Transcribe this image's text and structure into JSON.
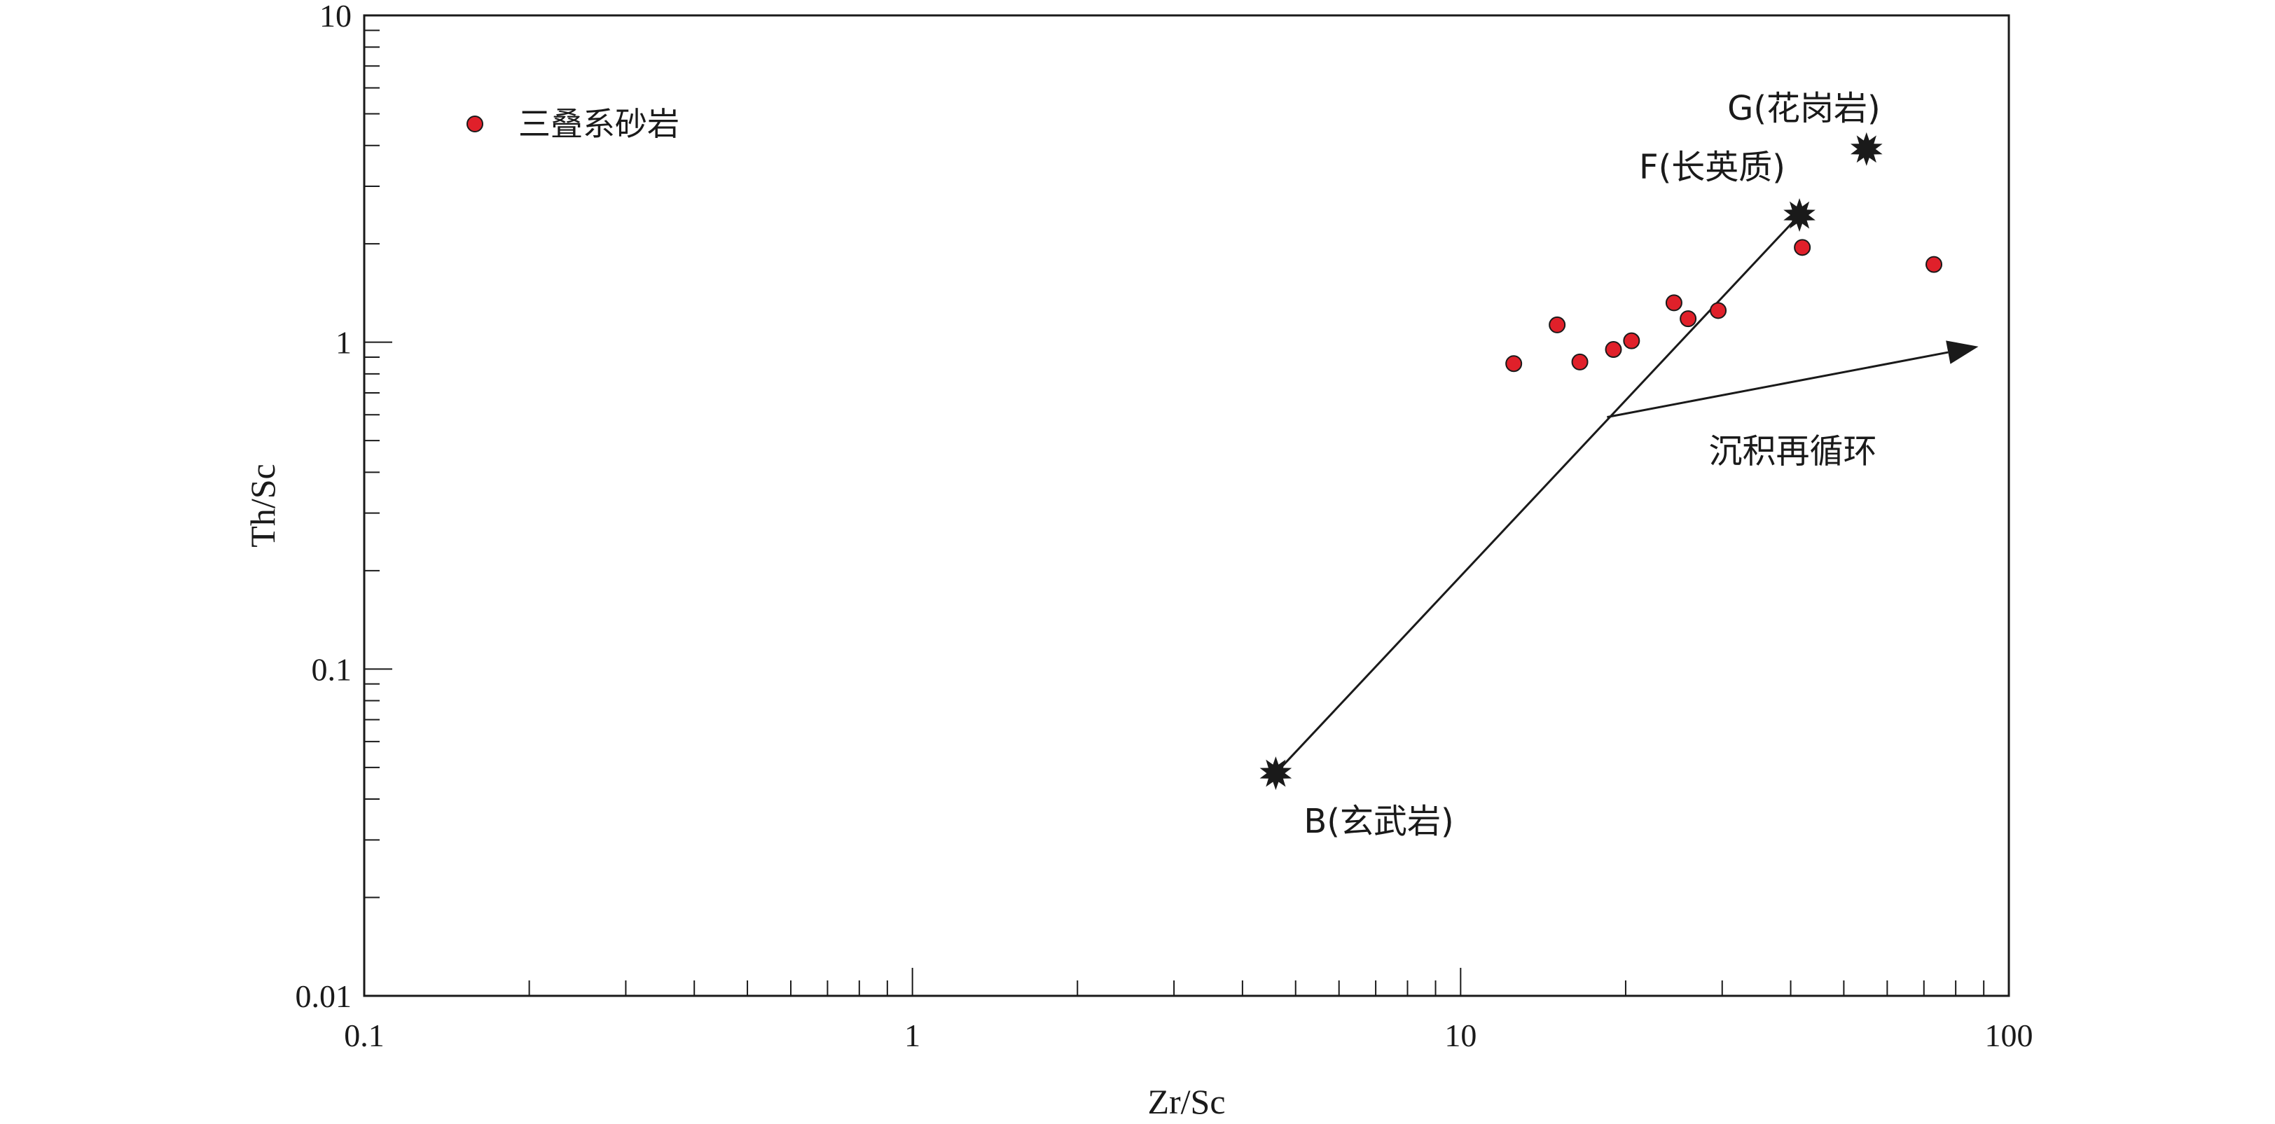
{
  "chart_data": {
    "type": "scatter",
    "xlabel": "Zr/Sc",
    "ylabel": "Th/Sc",
    "x_scale": "log",
    "y_scale": "log",
    "xlim": [
      0.1,
      100
    ],
    "ylim": [
      0.01,
      10
    ],
    "x_ticks": [
      "0.1",
      "1",
      "10",
      "100"
    ],
    "y_ticks": [
      "0.01",
      "0.1",
      "1",
      "10"
    ],
    "grid": false,
    "legend_position": "top-left",
    "series": [
      {
        "name": "三叠系砂岩",
        "color": "#e0202a",
        "points": [
          {
            "x": 12.5,
            "y": 0.86
          },
          {
            "x": 15.0,
            "y": 1.13
          },
          {
            "x": 16.5,
            "y": 0.87
          },
          {
            "x": 19.0,
            "y": 0.95
          },
          {
            "x": 20.5,
            "y": 1.01
          },
          {
            "x": 24.5,
            "y": 1.32
          },
          {
            "x": 26.0,
            "y": 1.18
          },
          {
            "x": 29.5,
            "y": 1.25
          },
          {
            "x": 42.0,
            "y": 1.95
          },
          {
            "x": 73.0,
            "y": 1.73
          }
        ]
      }
    ],
    "reference_points": [
      {
        "label": "B(玄武岩)",
        "x": 4.6,
        "y": 0.048
      },
      {
        "label": "F(长英质)",
        "x": 41.5,
        "y": 2.45
      },
      {
        "label": "G(花岗岩)",
        "x": 55.0,
        "y": 3.9
      }
    ],
    "trend_lines": [
      {
        "from": {
          "x": 4.6,
          "y": 0.048
        },
        "to": {
          "x": 41.5,
          "y": 2.45
        },
        "arrow": false
      },
      {
        "from": {
          "x": 18.5,
          "y": 0.59
        },
        "to": {
          "x": 88.0,
          "y": 0.97
        },
        "arrow": true,
        "label": "沉积再循环"
      }
    ]
  }
}
